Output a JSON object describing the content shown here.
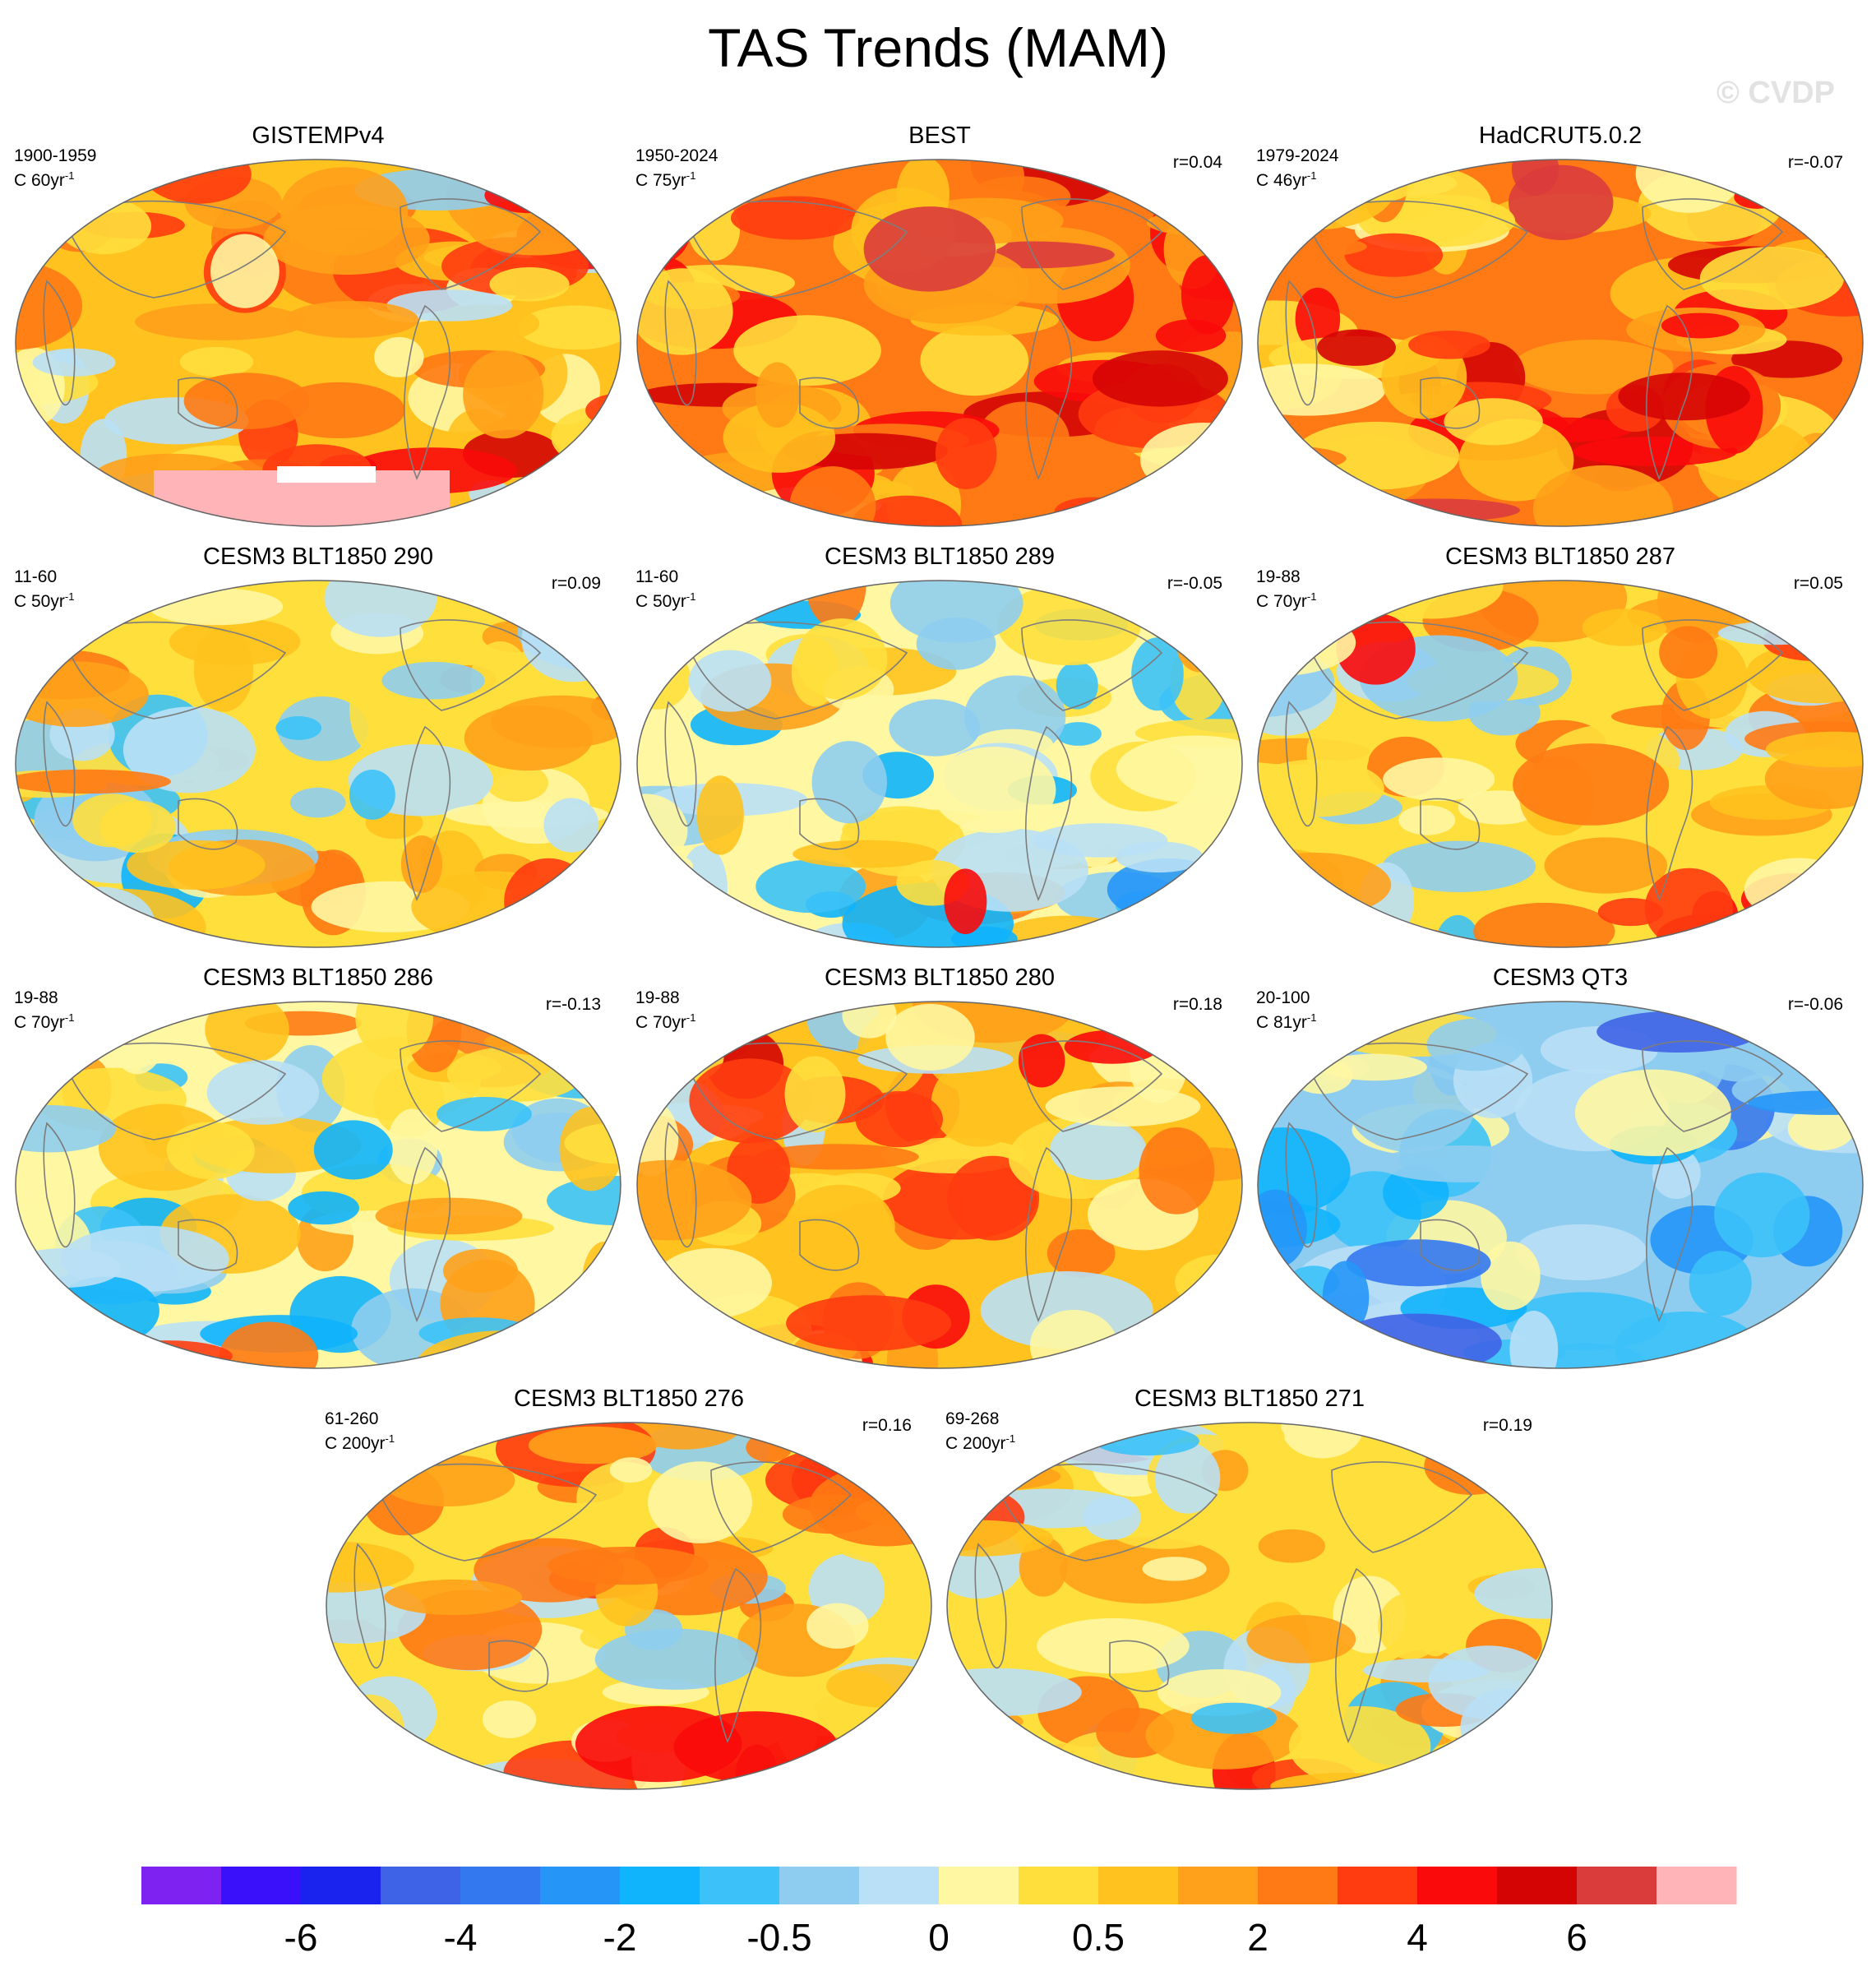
{
  "figure": {
    "title": "TAS Trends (MAM)",
    "credit": "© CVDP"
  },
  "chart_data": {
    "type": "heatmap",
    "title": "TAS Trends (MAM)",
    "variable": "TAS",
    "season": "MAM",
    "projection": "global map panels",
    "panels": [
      {
        "title": "GISTEMPv4",
        "period": "1900-1959",
        "const_label": "C 60yr",
        "unit_exp": "-1",
        "r": "",
        "tone": 0.45,
        "missing_south": true
      },
      {
        "title": "BEST",
        "period": "1950-2024",
        "const_label": "C 75yr",
        "unit_exp": "-1",
        "r": "r=0.04",
        "tone": 0.7
      },
      {
        "title": "HadCRUT5.0.2",
        "period": "1979-2024",
        "const_label": "C 46yr",
        "unit_exp": "-1",
        "r": "r=-0.07",
        "tone": 0.66
      },
      {
        "title": "CESM3 BLT1850 290",
        "period": "11-60",
        "const_label": "C 50yr",
        "unit_exp": "-1",
        "r": "r=0.09",
        "tone": 0.18
      },
      {
        "title": "CESM3 BLT1850 289",
        "period": "11-60",
        "const_label": "C 50yr",
        "unit_exp": "-1",
        "r": "r=-0.05",
        "tone": 0.02
      },
      {
        "title": "CESM3 BLT1850 287",
        "period": "19-88",
        "const_label": "C 70yr",
        "unit_exp": "-1",
        "r": "r=0.05",
        "tone": 0.22
      },
      {
        "title": "CESM3 BLT1850 286",
        "period": "19-88",
        "const_label": "C 70yr",
        "unit_exp": "-1",
        "r": "r=-0.13",
        "tone": 0.0
      },
      {
        "title": "CESM3 BLT1850 280",
        "period": "19-88",
        "const_label": "C 70yr",
        "unit_exp": "-1",
        "r": "r=0.18",
        "tone": 0.42
      },
      {
        "title": "CESM3 QT3",
        "period": "20-100",
        "const_label": "C 81yr",
        "unit_exp": "-1",
        "r": "r=-0.06",
        "tone": -0.3
      },
      {
        "title": "CESM3 BLT1850 276",
        "period": "61-260",
        "const_label": "C 200yr",
        "unit_exp": "-1",
        "r": "r=0.16",
        "tone": 0.3
      },
      {
        "title": "CESM3 BLT1850 271",
        "period": "69-268",
        "const_label": "C 200yr",
        "unit_exp": "-1",
        "r": "r=0.19",
        "tone": 0.26
      }
    ],
    "colorbar": {
      "colors": [
        "#7d22f0",
        "#3a10fb",
        "#1a23ee",
        "#3f63e6",
        "#3478f0",
        "#2596f8",
        "#0fb4fc",
        "#3cc2f8",
        "#8fcdf0",
        "#b9e0f6",
        "#fff7a2",
        "#ffdf3c",
        "#ffc21e",
        "#ffa11a",
        "#ff7a14",
        "#ff3c10",
        "#fa0a0a",
        "#d50404",
        "#da3c3c",
        "#ffb5b8"
      ],
      "tick_labels": [
        "-6",
        "-4",
        "-2",
        "-0.5",
        "0",
        "0.5",
        "2",
        "4",
        "6"
      ],
      "tick_boundaries": [
        2,
        4,
        6,
        8,
        10,
        12,
        14,
        16,
        18
      ]
    }
  }
}
